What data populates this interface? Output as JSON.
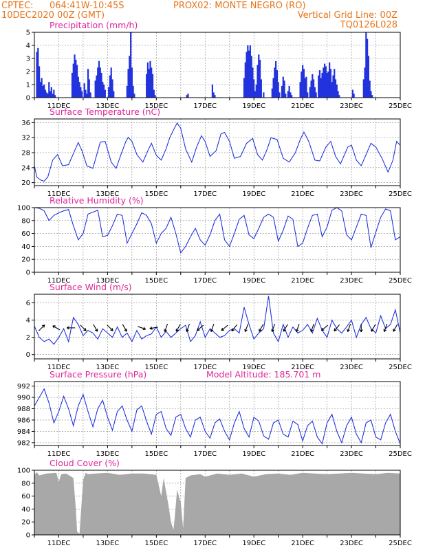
{
  "header": {
    "source": "CPTEC:",
    "coords": "064:41W-10:45S",
    "station": "PROX02: MONTE NEGRO (RO)",
    "run": "10DEC2020 00Z (GMT)",
    "grid_note": "Vertical Grid Line: 00Z",
    "code": "TQ0126L028"
  },
  "colors": {
    "header": "#e8751a",
    "titles": "#e0249a",
    "series": "#2233dd",
    "cloud": "#a8a8a8",
    "arrows": "#000000"
  },
  "chart_data": [
    {
      "type": "bar",
      "title": "Precipitation (mm/h)",
      "xlim": [
        10,
        25
      ],
      "x_ticks": [
        "11DEC",
        "13DEC",
        "15DEC",
        "17DEC",
        "19DEC",
        "21DEC",
        "23DEC",
        "25DEC"
      ],
      "ylim": [
        0,
        5
      ],
      "y_ticks": [
        0,
        1,
        2,
        3,
        4,
        5
      ],
      "grid": true,
      "x": [
        10.1,
        10.15,
        10.2,
        10.25,
        10.3,
        10.35,
        10.4,
        10.45,
        10.5,
        10.55,
        10.6,
        10.65,
        10.7,
        10.75,
        10.8,
        10.85,
        11.55,
        11.6,
        11.65,
        11.7,
        11.75,
        11.8,
        11.85,
        11.9,
        11.95,
        12.05,
        12.1,
        12.15,
        12.2,
        12.25,
        12.3,
        12.5,
        12.55,
        12.6,
        12.65,
        12.7,
        12.75,
        12.8,
        12.85,
        12.9,
        13.05,
        13.1,
        13.15,
        13.2,
        13.25,
        13.8,
        13.85,
        13.9,
        13.95,
        14.0,
        14.05,
        14.1,
        14.6,
        14.65,
        14.7,
        14.75,
        14.8,
        14.85,
        14.9,
        14.95,
        16.25,
        16.3,
        17.3,
        17.35,
        17.4,
        18.6,
        18.65,
        18.7,
        18.75,
        18.8,
        18.85,
        18.9,
        18.95,
        19.0,
        19.05,
        19.1,
        19.15,
        19.2,
        19.25,
        19.3,
        19.4,
        19.75,
        19.8,
        19.85,
        19.9,
        19.95,
        20.0,
        20.05,
        20.15,
        20.2,
        20.25,
        20.3,
        20.4,
        20.45,
        20.5,
        20.55,
        20.9,
        20.95,
        21.0,
        21.05,
        21.1,
        21.15,
        21.2,
        21.3,
        21.35,
        21.4,
        21.45,
        21.5,
        21.55,
        21.65,
        21.7,
        21.75,
        21.8,
        21.85,
        21.9,
        21.95,
        22.0,
        22.05,
        22.1,
        22.15,
        22.2,
        22.25,
        22.3,
        22.35,
        22.4,
        22.45,
        22.5,
        23.05,
        23.1,
        23.5,
        23.55,
        23.6,
        23.65,
        23.7,
        23.75,
        23.8,
        23.85
      ],
      "values": [
        3.5,
        3.8,
        2.4,
        1.2,
        1.5,
        0.9,
        1.0,
        0.6,
        0.4,
        0.3,
        1.2,
        0.5,
        0.8,
        0.3,
        0.6,
        0.2,
        1.9,
        2.6,
        3.3,
        2.9,
        2.5,
        1.6,
        1.2,
        0.8,
        0.5,
        1.1,
        0.6,
        0.3,
        2.2,
        1.4,
        0.4,
        1.3,
        1.7,
        2.3,
        2.8,
        2.3,
        1.9,
        1.2,
        1.0,
        0.6,
        0.8,
        1.7,
        2.3,
        1.4,
        0.5,
        0.9,
        2.2,
        3.2,
        5.0,
        2.3,
        0.9,
        0.3,
        1.8,
        2.7,
        2.2,
        2.8,
        2.3,
        1.8,
        0.6,
        0.2,
        0.2,
        0.3,
        1.0,
        0.4,
        0.2,
        1.5,
        2.7,
        3.5,
        4.0,
        3.6,
        4.0,
        3.2,
        2.3,
        1.4,
        0.5,
        1.0,
        2.5,
        3.3,
        2.9,
        1.4,
        0.4,
        0.7,
        1.5,
        2.3,
        2.8,
        2.1,
        1.2,
        0.4,
        0.9,
        1.6,
        1.3,
        0.3,
        0.5,
        0.9,
        0.4,
        0.2,
        1.2,
        2.0,
        2.5,
        2.2,
        1.5,
        1.6,
        0.4,
        0.8,
        1.3,
        1.8,
        1.4,
        0.8,
        0.4,
        1.7,
        2.1,
        1.5,
        1.9,
        2.3,
        2.6,
        2.4,
        1.9,
        2.0,
        2.7,
        2.2,
        1.2,
        1.7,
        2.2,
        1.4,
        1.0,
        0.5,
        0.2,
        0.6,
        0.3,
        1.4,
        2.3,
        5.0,
        4.5,
        3.2,
        1.3,
        0.5,
        0.2
      ]
    },
    {
      "type": "line",
      "title": "Surface Temperature (nC)",
      "xlim": [
        10,
        25
      ],
      "x_ticks": [
        "11DEC",
        "13DEC",
        "15DEC",
        "17DEC",
        "19DEC",
        "21DEC",
        "23DEC",
        "25DEC"
      ],
      "ylim": [
        19.2,
        37
      ],
      "y_ticks": [
        20,
        24,
        28,
        32,
        36
      ],
      "grid": true,
      "x": [
        10.0,
        10.1,
        10.25,
        10.4,
        10.55,
        10.75,
        10.95,
        11.15,
        11.4,
        11.65,
        11.8,
        11.95,
        12.15,
        12.4,
        12.7,
        12.9,
        13.15,
        13.35,
        13.55,
        13.75,
        13.85,
        14.0,
        14.2,
        14.45,
        14.65,
        14.8,
        15.0,
        15.2,
        15.4,
        15.55,
        15.7,
        15.85,
        16.0,
        16.2,
        16.45,
        16.65,
        16.85,
        17.0,
        17.2,
        17.45,
        17.65,
        17.8,
        18.0,
        18.2,
        18.45,
        18.7,
        18.95,
        19.15,
        19.35,
        19.55,
        19.7,
        19.95,
        20.2,
        20.45,
        20.7,
        20.9,
        21.05,
        21.25,
        21.5,
        21.7,
        21.95,
        22.15,
        22.35,
        22.55,
        22.85,
        23.0,
        23.2,
        23.4,
        23.6,
        23.8,
        24.0,
        24.25,
        24.5,
        24.7,
        24.85,
        25.0
      ],
      "values": [
        24.5,
        21.5,
        20.7,
        20.4,
        21.5,
        26.0,
        27.5,
        24.5,
        24.8,
        28.5,
        30.7,
        28.5,
        24.5,
        23.8,
        30.8,
        31.0,
        25.5,
        23.8,
        27.5,
        31.0,
        32.1,
        31.0,
        27.5,
        25.5,
        28.5,
        30.5,
        27.3,
        26.0,
        29.0,
        32.0,
        34.0,
        35.9,
        34.5,
        29.0,
        25.5,
        29.5,
        32.5,
        31.0,
        27.0,
        28.5,
        33.0,
        33.4,
        31.0,
        26.5,
        27.0,
        30.5,
        31.8,
        27.5,
        26.0,
        29.0,
        32.0,
        31.5,
        26.5,
        25.5,
        28.0,
        31.5,
        33.5,
        31.0,
        26.0,
        25.8,
        29.5,
        31.0,
        27.0,
        25.0,
        29.5,
        30.0,
        26.0,
        24.5,
        27.5,
        30.5,
        29.5,
        26.5,
        22.8,
        26.0,
        31.0,
        30.0
      ]
    },
    {
      "type": "line",
      "title": "Relative Humidity (%)",
      "xlim": [
        10,
        25
      ],
      "x_ticks": [
        "11DEC",
        "13DEC",
        "15DEC",
        "17DEC",
        "19DEC",
        "21DEC",
        "23DEC",
        "25DEC"
      ],
      "ylim": [
        0,
        100
      ],
      "y_ticks": [
        0,
        20,
        40,
        60,
        80,
        100
      ],
      "grid": true,
      "x": [
        10.0,
        10.2,
        10.4,
        10.6,
        10.8,
        11.0,
        11.2,
        11.4,
        11.6,
        11.8,
        12.0,
        12.2,
        12.4,
        12.6,
        12.8,
        13.0,
        13.2,
        13.4,
        13.6,
        13.8,
        14.0,
        14.2,
        14.4,
        14.6,
        14.8,
        15.0,
        15.2,
        15.4,
        15.6,
        15.8,
        16.0,
        16.2,
        16.4,
        16.6,
        16.8,
        17.0,
        17.2,
        17.4,
        17.6,
        17.8,
        18.0,
        18.2,
        18.4,
        18.6,
        18.8,
        19.0,
        19.2,
        19.4,
        19.6,
        19.8,
        20.0,
        20.2,
        20.4,
        20.6,
        20.8,
        21.0,
        21.2,
        21.4,
        21.6,
        21.8,
        22.0,
        22.2,
        22.4,
        22.6,
        22.8,
        23.0,
        23.2,
        23.4,
        23.6,
        23.8,
        24.0,
        24.2,
        24.4,
        24.6,
        24.8,
        25.0
      ],
      "values": [
        100,
        99,
        95,
        80,
        88,
        92,
        95,
        97,
        72,
        50,
        60,
        90,
        93,
        96,
        55,
        57,
        72,
        90,
        88,
        45,
        60,
        75,
        92,
        88,
        75,
        45,
        60,
        68,
        85,
        60,
        30,
        40,
        55,
        68,
        50,
        42,
        58,
        80,
        90,
        50,
        40,
        60,
        82,
        88,
        58,
        52,
        68,
        85,
        90,
        85,
        48,
        65,
        87,
        82,
        40,
        45,
        68,
        88,
        90,
        55,
        70,
        96,
        100,
        95,
        58,
        50,
        70,
        90,
        88,
        38,
        62,
        85,
        98,
        95,
        50,
        55
      ]
    },
    {
      "type": "line",
      "title": "Surface Wind (m/s)",
      "xlim": [
        10,
        25
      ],
      "x_ticks": [
        "11DEC",
        "13DEC",
        "15DEC",
        "17DEC",
        "19DEC",
        "21DEC",
        "23DEC",
        "25DEC"
      ],
      "ylim": [
        -0.5,
        7
      ],
      "y_ticks": [
        0,
        2,
        4,
        6
      ],
      "grid": true,
      "x": [
        10.0,
        10.2,
        10.4,
        10.6,
        10.8,
        11.0,
        11.2,
        11.4,
        11.6,
        11.8,
        12.0,
        12.2,
        12.4,
        12.6,
        12.8,
        13.0,
        13.2,
        13.4,
        13.6,
        13.8,
        14.0,
        14.2,
        14.4,
        14.6,
        14.8,
        15.0,
        15.2,
        15.4,
        15.6,
        15.8,
        16.0,
        16.2,
        16.4,
        16.6,
        16.8,
        17.0,
        17.2,
        17.4,
        17.6,
        17.8,
        18.0,
        18.2,
        18.4,
        18.6,
        18.8,
        19.0,
        19.2,
        19.4,
        19.6,
        19.8,
        20.0,
        20.2,
        20.4,
        20.6,
        20.8,
        21.0,
        21.2,
        21.4,
        21.6,
        21.8,
        22.0,
        22.2,
        22.4,
        22.6,
        22.8,
        23.0,
        23.2,
        23.4,
        23.6,
        23.8,
        24.0,
        24.2,
        24.4,
        24.6,
        24.8,
        25.0
      ],
      "values": [
        3.3,
        2.0,
        1.5,
        1.8,
        1.2,
        2.0,
        3.0,
        1.5,
        4.3,
        3.5,
        2.2,
        2.8,
        2.5,
        1.8,
        3.0,
        2.5,
        2.0,
        3.2,
        2.0,
        2.5,
        1.5,
        2.8,
        1.8,
        2.2,
        2.4,
        3.2,
        2.0,
        2.7,
        2.0,
        2.5,
        3.0,
        3.4,
        1.5,
        2.2,
        3.8,
        2.0,
        3.0,
        2.5,
        2.0,
        2.2,
        2.8,
        3.0,
        2.5,
        5.5,
        3.5,
        1.8,
        2.5,
        3.0,
        6.8,
        2.5,
        1.5,
        3.5,
        2.0,
        3.2,
        2.5,
        2.8,
        3.5,
        2.5,
        4.2,
        2.8,
        2.0,
        4.0,
        3.0,
        2.5,
        3.2,
        4.0,
        2.0,
        3.5,
        4.3,
        3.0,
        2.5,
        4.5,
        3.0,
        3.5,
        5.2,
        2.5
      ],
      "arrows_x": [
        10.3,
        10.9,
        11.5,
        12.0,
        12.5,
        13.1,
        13.7,
        14.4,
        14.9,
        15.4,
        15.9,
        16.3,
        16.8,
        17.3,
        17.8,
        18.2,
        18.7,
        19.3,
        19.8,
        20.3,
        20.8,
        21.4,
        21.9,
        22.4,
        22.9,
        23.4,
        23.9,
        24.4,
        24.8
      ],
      "arrows_dir_deg": [
        45,
        300,
        270,
        135,
        150,
        135,
        150,
        110,
        260,
        200,
        210,
        200,
        230,
        200,
        230,
        220,
        200,
        210,
        200,
        210,
        200,
        200,
        230,
        220,
        200,
        180,
        210,
        200,
        210
      ]
    },
    {
      "type": "line",
      "title": "Surface Pressure (hPa)",
      "subtitle": "Model Altitude: 185.701 m",
      "xlim": [
        10,
        25
      ],
      "x_ticks": [
        "11DEC",
        "13DEC",
        "15DEC",
        "17DEC",
        "19DEC",
        "21DEC",
        "23DEC",
        "25DEC"
      ],
      "ylim": [
        981.5,
        992.8
      ],
      "y_ticks": [
        982,
        984,
        986,
        988,
        990,
        992
      ],
      "grid": true,
      "x": [
        10.0,
        10.2,
        10.4,
        10.6,
        10.8,
        11.0,
        11.2,
        11.4,
        11.6,
        11.8,
        12.0,
        12.2,
        12.4,
        12.6,
        12.8,
        13.0,
        13.2,
        13.4,
        13.6,
        13.8,
        14.0,
        14.2,
        14.4,
        14.6,
        14.8,
        15.0,
        15.2,
        15.4,
        15.6,
        15.8,
        16.0,
        16.2,
        16.4,
        16.6,
        16.8,
        17.0,
        17.2,
        17.4,
        17.6,
        17.8,
        18.0,
        18.2,
        18.4,
        18.6,
        18.8,
        19.0,
        19.2,
        19.4,
        19.6,
        19.8,
        20.0,
        20.2,
        20.4,
        20.6,
        20.8,
        21.0,
        21.2,
        21.4,
        21.6,
        21.8,
        22.0,
        22.2,
        22.4,
        22.6,
        22.8,
        23.0,
        23.2,
        23.4,
        23.6,
        23.8,
        24.0,
        24.2,
        24.4,
        24.6,
        24.8,
        25.0
      ],
      "values": [
        988.5,
        990.0,
        991.5,
        989.0,
        985.5,
        987.5,
        990.2,
        988.0,
        985.0,
        988.5,
        990.5,
        987.5,
        984.8,
        988.0,
        989.5,
        986.5,
        984.2,
        987.5,
        988.5,
        986.0,
        984.0,
        987.8,
        988.5,
        985.8,
        983.5,
        987.0,
        987.5,
        984.5,
        983.3,
        986.5,
        987.0,
        984.5,
        983.0,
        986.0,
        986.5,
        984.0,
        982.8,
        985.5,
        986.2,
        984.0,
        982.5,
        985.5,
        987.5,
        984.5,
        983.0,
        986.5,
        985.8,
        983.2,
        982.6,
        985.5,
        986.0,
        983.5,
        983.0,
        985.8,
        985.2,
        982.3,
        985.0,
        985.8,
        983.0,
        981.8,
        985.5,
        987.0,
        984.0,
        982.0,
        985.0,
        986.5,
        983.5,
        982.0,
        985.5,
        986.0,
        983.0,
        982.5,
        985.5,
        987.0,
        984.0,
        981.8
      ]
    },
    {
      "type": "area",
      "title": "Cloud Cover (%)",
      "xlim": [
        10,
        25
      ],
      "x_ticks": [
        "11DEC",
        "13DEC",
        "15DEC",
        "17DEC",
        "19DEC",
        "21DEC",
        "23DEC",
        "25DEC"
      ],
      "ylim": [
        0,
        100
      ],
      "y_ticks": [
        0,
        20,
        40,
        60,
        80,
        100
      ],
      "grid": true,
      "x": [
        10.0,
        10.1,
        10.2,
        10.5,
        10.9,
        11.0,
        11.1,
        11.3,
        11.6,
        11.7,
        11.75,
        11.85,
        11.9,
        12.0,
        12.1,
        12.2,
        12.5,
        13.0,
        13.5,
        14.0,
        14.5,
        15.0,
        15.2,
        15.3,
        15.5,
        15.6,
        15.7,
        15.75,
        15.85,
        16.0,
        16.1,
        16.2,
        16.4,
        16.8,
        17.0,
        17.5,
        18.0,
        18.5,
        19.0,
        19.5,
        20.0,
        20.5,
        21.0,
        21.5,
        22.0,
        22.5,
        23.0,
        23.5,
        24.0,
        24.5,
        25.0
      ],
      "values": [
        93,
        97,
        92,
        95,
        96,
        82,
        94,
        95,
        88,
        40,
        5,
        2,
        30,
        85,
        96,
        94,
        95,
        96,
        93,
        95,
        95,
        93,
        60,
        88,
        45,
        20,
        8,
        25,
        70,
        50,
        10,
        88,
        92,
        94,
        90,
        95,
        93,
        95,
        90,
        94,
        95,
        93,
        96,
        95,
        94,
        95,
        96,
        95,
        94,
        96,
        95
      ]
    }
  ]
}
